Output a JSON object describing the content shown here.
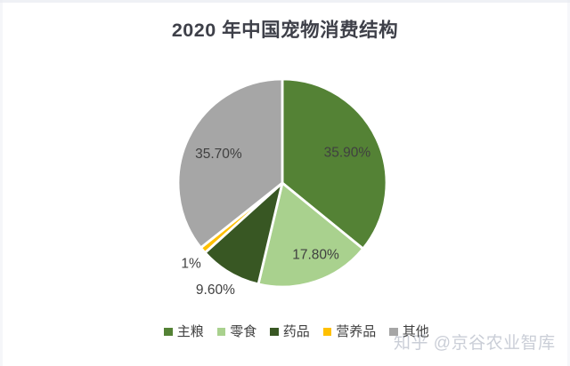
{
  "chart_data": {
    "type": "pie",
    "title": "2020 年中国宠物消费结构",
    "start_angle_deg": 0,
    "direction": "clockwise",
    "legend_position": "bottom",
    "background": "#ffffff",
    "label_color": "#404040",
    "slice_border_color": "#ffffff",
    "slices": [
      {
        "label": "主粮",
        "value": 35.9,
        "display": "35.90%",
        "color": "#548235"
      },
      {
        "label": "零食",
        "value": 17.8,
        "display": "17.80%",
        "color": "#a9d18e"
      },
      {
        "label": "药品",
        "value": 9.6,
        "display": "9.60%",
        "color": "#385723"
      },
      {
        "label": "营养品",
        "value": 1.0,
        "display": "1%",
        "color": "#ffc000"
      },
      {
        "label": "其他",
        "value": 35.7,
        "display": "35.70%",
        "color": "#a6a6a6"
      }
    ]
  },
  "watermark": {
    "text": "知乎 @京谷农业智库"
  }
}
